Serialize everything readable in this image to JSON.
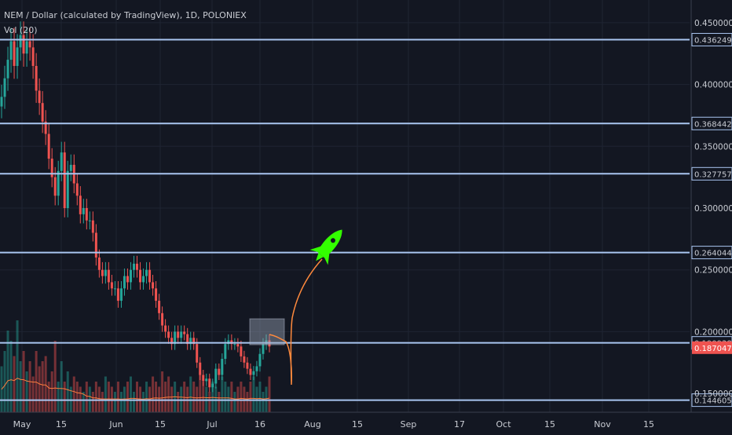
{
  "header": {
    "title": "NEM / Dollar (calculated by TradingView), 1D, POLONIEX",
    "volume_label": "Vol (20)"
  },
  "colors": {
    "background": "#131722",
    "grid": "#1f2433",
    "up": "#26a69a",
    "down": "#ef5350",
    "level_line": "#a9c5f0",
    "current_price_badge": "#ef5350",
    "ma_line": "#ff7f3f",
    "drawing_path": "#ff8a3d",
    "rocket": "#33ff00",
    "highlight_box": "#7f8596"
  },
  "chart_data": {
    "type": "candlestick",
    "title": "NEM / Dollar (calculated by TradingView), 1D, POLONIEX",
    "ylim": [
      0.138,
      0.462
    ],
    "y_ticks": [
      "0.45000000",
      "0.40000000",
      "0.35000000",
      "0.30000000",
      "0.25000000",
      "0.20000000"
    ],
    "y_tick_values": [
      0.45,
      0.4,
      0.35,
      0.3,
      0.25,
      0.2
    ],
    "x_ticks": [
      "May",
      "15",
      "Jun",
      "15",
      "Jul",
      "16",
      "Aug",
      "15",
      "Sep",
      "17",
      "Oct",
      "15",
      "Nov",
      "15"
    ],
    "horizontal_levels": [
      {
        "label": "0.43624997",
        "value": 0.43624997
      },
      {
        "label": "0.36844239",
        "value": 0.36844239
      },
      {
        "label": "0.32775784",
        "value": 0.32775784
      },
      {
        "label": "0.26404427",
        "value": 0.26404427
      },
      {
        "label": "0.19093866",
        "value": 0.19093866
      },
      {
        "label": "0.14460597",
        "value": 0.14460597
      }
    ],
    "current_price": {
      "label": "0.18704711",
      "value": 0.18704711
    },
    "partially_hidden_label": "0.15000000",
    "grid": true,
    "daily_closes": [
      0.39,
      0.405,
      0.42,
      0.435,
      0.415,
      0.43,
      0.44,
      0.425,
      0.435,
      0.43,
      0.415,
      0.395,
      0.385,
      0.37,
      0.36,
      0.34,
      0.325,
      0.31,
      0.33,
      0.345,
      0.3,
      0.33,
      0.335,
      0.32,
      0.31,
      0.295,
      0.3,
      0.29,
      0.29,
      0.28,
      0.26,
      0.25,
      0.245,
      0.25,
      0.24,
      0.235,
      0.235,
      0.225,
      0.235,
      0.245,
      0.24,
      0.25,
      0.255,
      0.25,
      0.24,
      0.245,
      0.25,
      0.24,
      0.235,
      0.225,
      0.215,
      0.205,
      0.2,
      0.195,
      0.19,
      0.2,
      0.195,
      0.2,
      0.198,
      0.19,
      0.195,
      0.19,
      0.175,
      0.165,
      0.16,
      0.162,
      0.155,
      0.158,
      0.17,
      0.165,
      0.178,
      0.19,
      0.193,
      0.19,
      0.19,
      0.188,
      0.18,
      0.175,
      0.17,
      0.165,
      0.168,
      0.172,
      0.182,
      0.19,
      0.193,
      0.188
    ],
    "volume": [
      0.45,
      0.6,
      0.8,
      0.7,
      0.55,
      0.9,
      0.5,
      0.6,
      0.4,
      0.5,
      0.35,
      0.6,
      0.45,
      0.5,
      0.55,
      0.3,
      0.4,
      0.7,
      0.3,
      0.5,
      0.3,
      0.4,
      0.25,
      0.35,
      0.3,
      0.25,
      0.2,
      0.3,
      0.25,
      0.2,
      0.3,
      0.25,
      0.2,
      0.35,
      0.3,
      0.25,
      0.2,
      0.3,
      0.2,
      0.25,
      0.3,
      0.35,
      0.2,
      0.3,
      0.25,
      0.2,
      0.3,
      0.25,
      0.35,
      0.3,
      0.25,
      0.4,
      0.3,
      0.35,
      0.25,
      0.3,
      0.2,
      0.25,
      0.3,
      0.25,
      0.35,
      0.3,
      0.25,
      0.4,
      0.3,
      0.25,
      0.2,
      0.3,
      0.25,
      0.2,
      0.35,
      0.3,
      0.25,
      0.3,
      0.2,
      0.25,
      0.3,
      0.25,
      0.2,
      0.3,
      0.35,
      0.25,
      0.3,
      0.2,
      0.25,
      0.35
    ]
  }
}
